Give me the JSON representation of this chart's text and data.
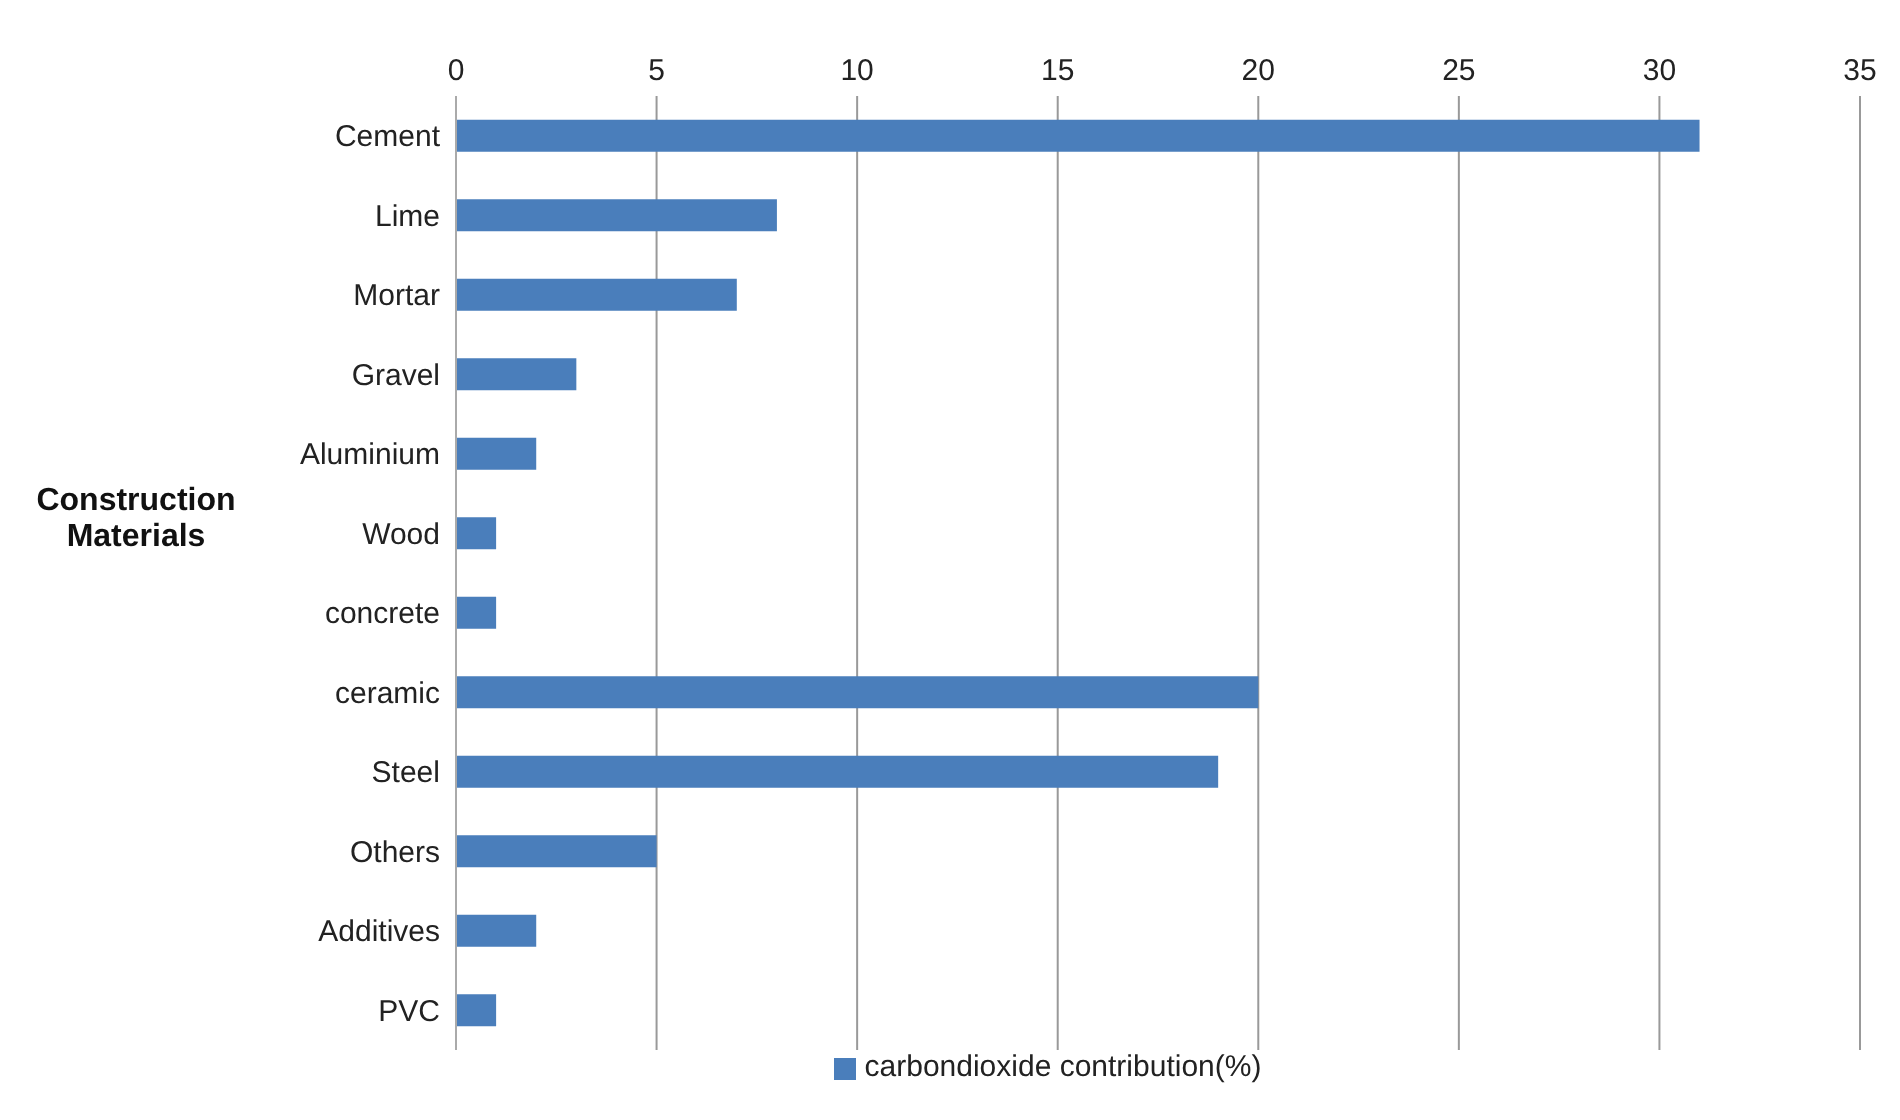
{
  "chart_data": {
    "type": "bar",
    "orientation": "horizontal",
    "ylabel": "Construction Materials",
    "categories": [
      "Cement",
      "Lime",
      "Mortar",
      "Gravel",
      "Aluminium",
      "Wood",
      "concrete",
      "ceramic",
      "Steel",
      "Others",
      "Additives",
      "PVC"
    ],
    "series": [
      {
        "name": "carbondioxide contribution(%)",
        "color": "#4a7ebb",
        "values": [
          31,
          8,
          7,
          3,
          2,
          1,
          1,
          20,
          19,
          5,
          2,
          1
        ]
      }
    ],
    "xlim": [
      0,
      35
    ],
    "xticks": [
      0,
      5,
      10,
      15,
      20,
      25,
      30,
      35
    ],
    "grid": "x",
    "legend": "bottom"
  }
}
